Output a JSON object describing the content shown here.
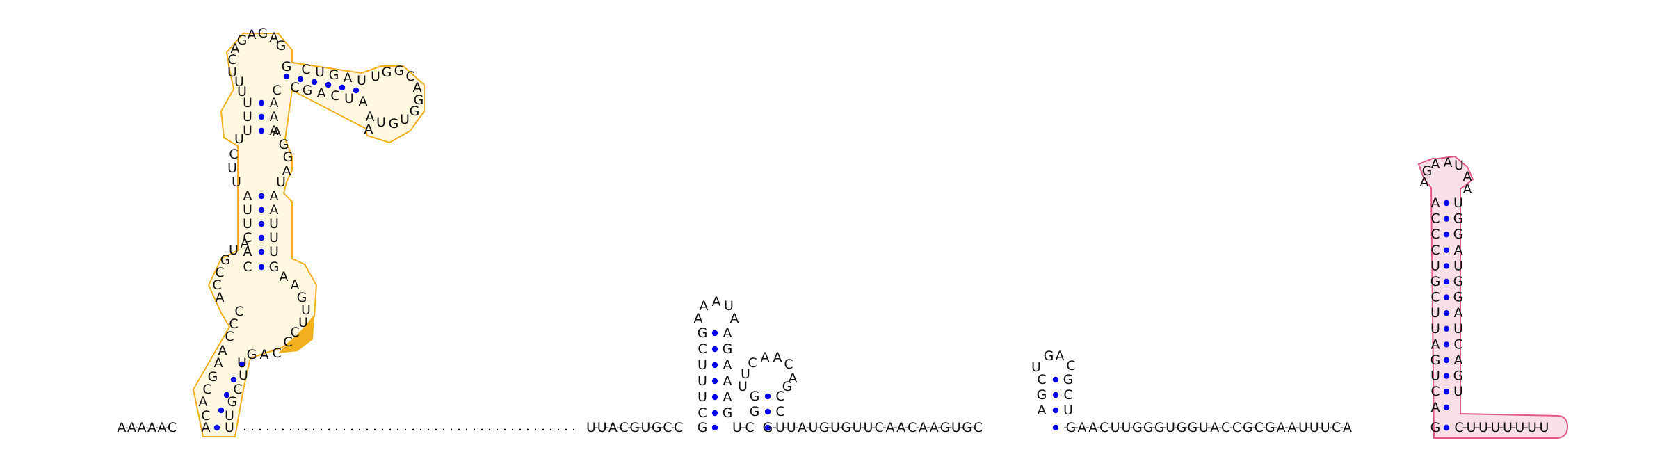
{
  "diagram": {
    "leader": [
      "A",
      "A",
      "A",
      "A",
      "A",
      "C"
    ],
    "hairpin1": {
      "left": [
        "G",
        "C",
        "U",
        "U",
        "U",
        "C"
      ],
      "loop": [
        "A",
        "A",
        "A",
        "U",
        "A"
      ],
      "right": [
        "A",
        "G",
        "A",
        "A",
        "A",
        "G"
      ]
    },
    "linker1": [
      "U",
      "C"
    ],
    "hairpin2": {
      "left": [
        "G",
        "G"
      ],
      "loop": [
        "U",
        "C",
        "A",
        "A",
        "C",
        "A",
        "G"
      ],
      "right": [
        "C",
        "C"
      ]
    },
    "spacer": [
      "G",
      "U",
      "U",
      "A",
      "U",
      "G",
      "U",
      "G",
      "U",
      "U",
      "C",
      "A",
      "A",
      "C",
      "A",
      "A",
      "G",
      "U",
      "G",
      "C"
    ],
    "hairpin3": {
      "left": [
        "A",
        "G",
        "C"
      ],
      "loop": [
        "U",
        "G",
        "A",
        "C"
      ],
      "right": [
        "C",
        "C",
        "U"
      ]
    },
    "spacer2": [
      "G",
      "A",
      "A",
      "C",
      "U",
      "U",
      "G",
      "G",
      "G",
      "U",
      "G",
      "G",
      "U",
      "A",
      "C",
      "C",
      "G",
      "C",
      "G",
      "A",
      "A",
      "U",
      "U",
      "U",
      "C",
      "A"
    ],
    "terminator": {
      "left": [
        "G",
        "A",
        "C",
        "U",
        "G",
        "A",
        "U",
        "C",
        "G",
        "U",
        "C",
        "C",
        "C",
        "A"
      ],
      "loop": [
        "G",
        "A",
        "A",
        "U",
        "A"
      ],
      "right": [
        "U",
        "G",
        "G",
        "G",
        "A",
        "U",
        "G",
        "G",
        "A",
        "U",
        "C",
        "A",
        "G",
        "U"
      ]
    },
    "tail": [
      "C",
      "U",
      "U",
      "U",
      "U",
      "U",
      "U",
      "U"
    ],
    "upstream_stem5": [
      "A",
      "C",
      "A",
      "G",
      "C",
      "A",
      "A",
      "C",
      "C"
    ],
    "upstream_stem3": [
      "U",
      "G",
      "C",
      "U",
      "C",
      "C",
      "A",
      "G"
    ],
    "multiloop_left": [
      "C",
      "A",
      "G",
      "U"
    ],
    "multiloop_right": [
      "G",
      "A",
      "A",
      "G",
      "U",
      "C",
      "C"
    ],
    "stemB_left": [
      "C",
      "A",
      "C",
      "U",
      "U",
      "A"
    ],
    "stemB_right": [
      "G",
      "U",
      "U",
      "U",
      "A",
      "A"
    ],
    "internal_left": [
      "U",
      "U",
      "C"
    ],
    "internal_right": [
      "U",
      "A",
      "G",
      "G",
      "A"
    ],
    "stemC_left": [
      "U",
      "U",
      "U",
      "C"
    ],
    "stemC_right": [
      "A",
      "A",
      "A",
      "C"
    ],
    "topleft_loop": [
      "U",
      "C",
      "A",
      "G",
      "A",
      "G",
      "A",
      "G"
    ],
    "arm_top": [
      "C",
      "U",
      "G",
      "A",
      "U",
      "G",
      "G",
      "C",
      "A",
      "G",
      "U",
      "G",
      "U",
      "A",
      "A"
    ],
    "arm_bottom": [
      "G",
      "A",
      "C",
      "U",
      "A",
      "A"
    ],
    "dots_count": 44,
    "colors": {
      "pair_dot": "#0000ee",
      "orange_outline": "#f2b01e",
      "orange_fill": "#fff7e0",
      "orange_highlight": "#f2b01e",
      "pink_outline": "#e05a85",
      "pink_fill": "#f9dfe6"
    }
  }
}
